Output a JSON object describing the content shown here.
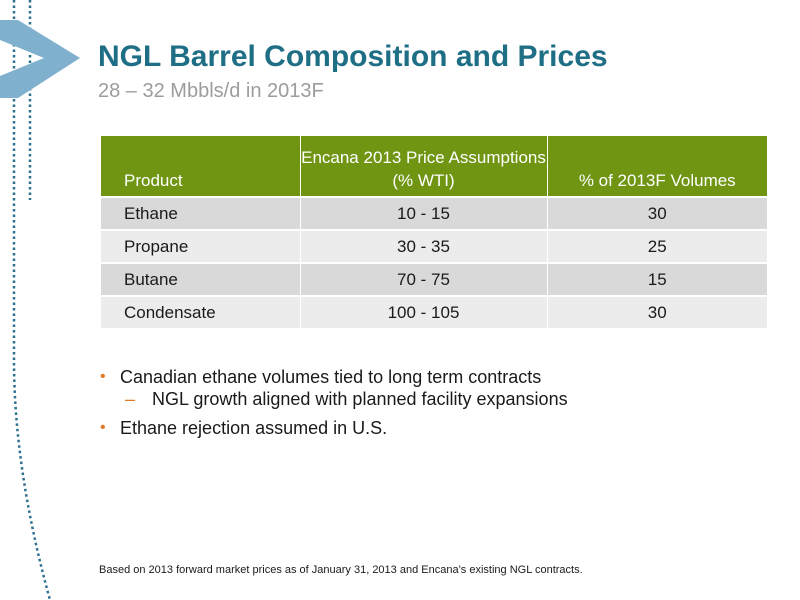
{
  "header": {
    "title": "NGL Barrel Composition and Prices",
    "subtitle": "28 – 32 Mbbls/d in 2013F"
  },
  "colors": {
    "title": "#1e6e86",
    "table_header": "#6f9513",
    "bullet_accent": "#e07b2a",
    "brand_chevron": "#7fb1cf"
  },
  "table": {
    "headers": [
      "Product",
      "Encana 2013 Price Assumptions (% WTI)",
      "% of 2013F Volumes"
    ],
    "rows": [
      {
        "product": "Ethane",
        "price": "10 - 15",
        "volume": "30"
      },
      {
        "product": "Propane",
        "price": "30 - 35",
        "volume": "25"
      },
      {
        "product": "Butane",
        "price": "70 - 75",
        "volume": "15"
      },
      {
        "product": "Condensate",
        "price": "100 - 105",
        "volume": "30"
      }
    ]
  },
  "bullets": [
    {
      "text": "Canadian ethane volumes tied to long term contracts",
      "level": 1
    },
    {
      "text": "NGL growth aligned with planned facility expansions",
      "level": 2
    },
    {
      "text": "Ethane rejection assumed in U.S.",
      "level": 1
    }
  ],
  "footnote": "Based on 2013 forward market prices as of January 31, 2013 and Encana’s existing NGL contracts."
}
